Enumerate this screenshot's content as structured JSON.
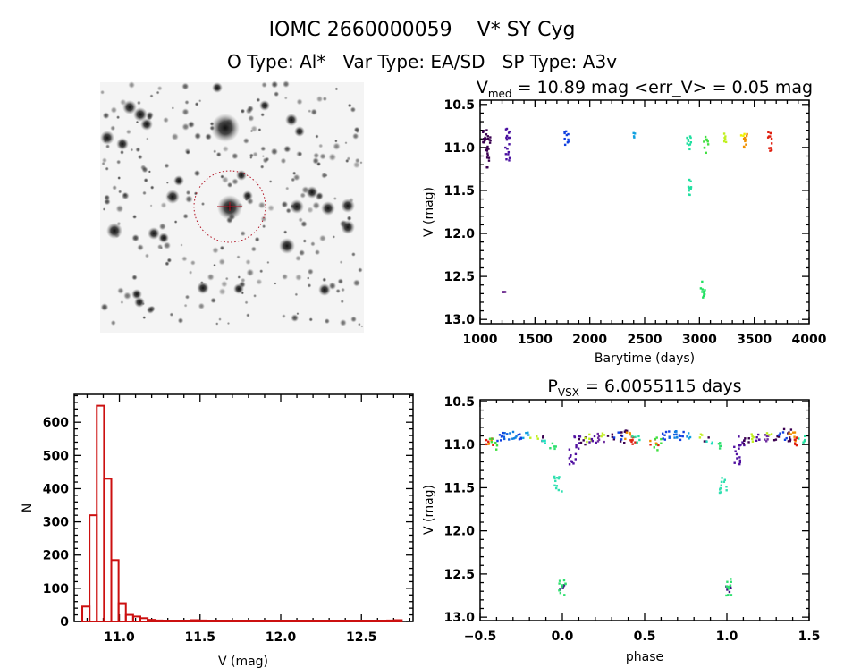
{
  "header": {
    "title": "IOMC 2660000059    V* SY Cyg",
    "subtitle": "O Type: Al*   Var Type: EA/SD   SP Type: A3v"
  },
  "chart_data": [
    {
      "id": "image",
      "type": "image",
      "description_colors": {
        "circle": "#cc1010",
        "background": "#ffffff"
      }
    },
    {
      "id": "lightcurve",
      "type": "scatter",
      "title_main": "V",
      "title_sub": "med",
      "title_rest": " = 10.89 mag <err_V> = 0.05 mag",
      "xlabel": "Barytime (days)",
      "ylabel": "V (mag)",
      "xlim": [
        1000,
        4000
      ],
      "ylim": [
        13.05,
        10.45
      ],
      "y_inverted": true,
      "xticks": [
        1000,
        1500,
        2000,
        2500,
        3000,
        3500,
        4000
      ],
      "yticks": [
        10.5,
        11.0,
        11.5,
        12.0,
        12.5,
        13.0
      ],
      "clusters": [
        {
          "t": 1045,
          "vmin": 10.78,
          "vmax": 11.02,
          "color": "#3a0050"
        },
        {
          "t": 1075,
          "vmin": 10.85,
          "vmax": 11.25,
          "color": "#3a0050"
        },
        {
          "t": 1215,
          "vmin": 12.65,
          "vmax": 12.72,
          "color": "#5a1080"
        },
        {
          "t": 1250,
          "vmin": 10.78,
          "vmax": 11.18,
          "color": "#4a10a0"
        },
        {
          "t": 1790,
          "vmin": 10.8,
          "vmax": 11.0,
          "color": "#1040e0"
        },
        {
          "t": 2420,
          "vmin": 10.82,
          "vmax": 10.9,
          "color": "#10a0e0"
        },
        {
          "t": 2905,
          "vmin": 10.87,
          "vmax": 11.08,
          "color": "#20e0a0"
        },
        {
          "t": 2905,
          "vmin": 11.37,
          "vmax": 11.57,
          "color": "#20e0a0"
        },
        {
          "t": 3030,
          "vmin": 12.55,
          "vmax": 12.75,
          "color": "#20e060"
        },
        {
          "t": 3060,
          "vmin": 10.87,
          "vmax": 11.07,
          "color": "#40e040"
        },
        {
          "t": 3240,
          "vmin": 10.83,
          "vmax": 10.95,
          "color": "#c0f020"
        },
        {
          "t": 3400,
          "vmin": 10.84,
          "vmax": 10.9,
          "color": "#f0f000"
        },
        {
          "t": 3425,
          "vmin": 10.82,
          "vmax": 11.02,
          "color": "#f09000"
        },
        {
          "t": 3640,
          "vmin": 10.8,
          "vmax": 11.06,
          "color": "#e02010"
        }
      ]
    },
    {
      "id": "histogram",
      "type": "bar",
      "xlabel": "V (mag)",
      "ylabel": "N",
      "xlim": [
        10.72,
        12.82
      ],
      "ylim": [
        0,
        684
      ],
      "xticks": [
        11.0,
        11.5,
        12.0,
        12.5
      ],
      "yticks": [
        0,
        100,
        200,
        300,
        400,
        500,
        600
      ],
      "bin_start": 10.77,
      "bin_width": 0.045,
      "values": [
        45,
        320,
        650,
        430,
        185,
        55,
        20,
        15,
        10,
        5,
        3,
        1,
        1,
        1,
        2,
        4,
        3,
        1,
        0,
        0,
        0,
        0,
        0,
        0,
        0,
        0,
        0,
        0,
        0,
        0,
        0,
        0,
        0,
        0,
        0,
        0,
        0,
        0,
        0,
        0,
        0,
        1,
        3,
        4
      ],
      "color": "#cc1010"
    },
    {
      "id": "phased",
      "type": "scatter",
      "title_main": "P",
      "title_sub": "VSX",
      "title_rest": " = 6.0055115 days",
      "xlabel": "phase",
      "ylabel": "V (mag)",
      "xlim": [
        -0.5,
        1.5
      ],
      "ylim": [
        13.04,
        10.48
      ],
      "y_inverted": true,
      "xticks": [
        -0.5,
        0.0,
        0.5,
        1.0,
        1.5
      ],
      "yticks": [
        10.5,
        11.0,
        11.5,
        12.0,
        12.5,
        13.0
      ],
      "clusters": [
        {
          "phase": 0.0,
          "vmin": 12.62,
          "vmax": 12.72,
          "color": "#3a1080"
        },
        {
          "phase": 0.004,
          "vmin": 12.55,
          "vmax": 12.75,
          "color": "#30e070"
        },
        {
          "phase": 0.065,
          "vmin": 11.0,
          "vmax": 11.23,
          "color": "#5010a0"
        },
        {
          "phase": 0.09,
          "vmin": 10.9,
          "vmax": 11.05,
          "color": "#5010a0"
        },
        {
          "phase": 0.12,
          "vmin": 10.9,
          "vmax": 11.0,
          "color": "#3a0050"
        },
        {
          "phase": 0.16,
          "vmin": 10.88,
          "vmax": 10.98,
          "color": "#c0f020"
        },
        {
          "phase": 0.19,
          "vmin": 10.88,
          "vmax": 10.98,
          "color": "#5010a0"
        },
        {
          "phase": 0.23,
          "vmin": 10.85,
          "vmax": 10.97,
          "color": "#7030a0"
        },
        {
          "phase": 0.26,
          "vmin": 10.86,
          "vmax": 10.92,
          "color": "#c0f020"
        },
        {
          "phase": 0.3,
          "vmin": 10.88,
          "vmax": 10.96,
          "color": "#3a0050"
        },
        {
          "phase": 0.34,
          "vmin": 10.85,
          "vmax": 10.95,
          "color": "#1040e0"
        },
        {
          "phase": 0.37,
          "vmin": 10.82,
          "vmax": 10.98,
          "color": "#3a0050"
        },
        {
          "phase": 0.4,
          "vmin": 10.85,
          "vmax": 10.98,
          "color": "#f09000"
        },
        {
          "phase": 0.42,
          "vmin": 10.88,
          "vmax": 11.02,
          "color": "#e02010"
        },
        {
          "phase": 0.45,
          "vmin": 10.88,
          "vmax": 10.98,
          "color": "#20e0a0"
        },
        {
          "phase": 0.55,
          "vmin": 10.95,
          "vmax": 11.0,
          "color": "#f09000"
        },
        {
          "phase": 0.56,
          "vmin": 10.92,
          "vmax": 11.03,
          "color": "#e02010"
        },
        {
          "phase": 0.58,
          "vmin": 10.92,
          "vmax": 11.07,
          "color": "#40e040"
        },
        {
          "phase": 0.63,
          "vmin": 10.84,
          "vmax": 10.96,
          "color": "#1040e0"
        },
        {
          "phase": 0.67,
          "vmin": 10.84,
          "vmax": 10.95,
          "color": "#1060e0"
        },
        {
          "phase": 0.7,
          "vmin": 10.84,
          "vmax": 10.96,
          "color": "#1080e0"
        },
        {
          "phase": 0.74,
          "vmin": 10.85,
          "vmax": 10.95,
          "color": "#1040e0"
        },
        {
          "phase": 0.78,
          "vmin": 10.85,
          "vmax": 10.93,
          "color": "#10a0e0"
        },
        {
          "phase": 0.83,
          "vmin": 10.88,
          "vmax": 10.94,
          "color": "#c0f020"
        },
        {
          "phase": 0.87,
          "vmin": 10.9,
          "vmax": 10.97,
          "color": "#3a0050"
        },
        {
          "phase": 0.9,
          "vmin": 10.95,
          "vmax": 11.0,
          "color": "#20e0c0"
        },
        {
          "phase": 0.95,
          "vmin": 10.95,
          "vmax": 11.05,
          "color": "#30e070"
        },
        {
          "phase": 0.975,
          "vmin": 11.35,
          "vmax": 11.58,
          "color": "#30e0b0"
        }
      ]
    }
  ]
}
